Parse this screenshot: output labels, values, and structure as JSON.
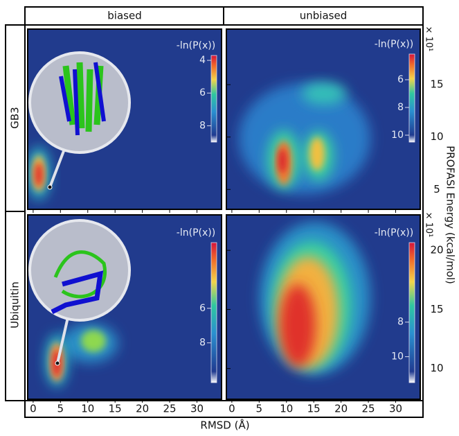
{
  "figure": {
    "columns": [
      "biased",
      "unbiased"
    ],
    "rows": [
      "GB3",
      "Ubiquitin"
    ],
    "xlabel": "RMSD (Å)",
    "ylabel": "PROFASI Energy (kcal/mol)"
  },
  "chart_data": [
    {
      "type": "heatmap",
      "xlim": [
        -1,
        34.5
      ],
      "xticks": [
        0,
        5,
        10,
        15,
        20,
        25,
        30
      ],
      "colorbar": {
        "label": "-ln(P(x))",
        "clim": [
          3.7,
          9
        ],
        "ticks": [
          4,
          6,
          8
        ]
      }
    },
    {
      "type": "heatmap",
      "xlim": [
        -1,
        34.5
      ],
      "xticks": [
        0,
        5,
        10,
        15,
        20,
        25,
        30
      ],
      "ylim": [
        3.1,
        20.3
      ],
      "yticks": [
        5,
        10,
        15
      ],
      "y_multiplier": "× 10¹",
      "colorbar": {
        "label": "-ln(P(x))",
        "clim": [
          4.15,
          10.5
        ],
        "ticks": [
          6,
          8,
          10
        ]
      }
    },
    {
      "type": "heatmap",
      "xlim": [
        -1,
        34.5
      ],
      "xticks": [
        0,
        5,
        10,
        15,
        20,
        25,
        30
      ],
      "colorbar": {
        "label": "-ln(P(x))",
        "clim": [
          2.2,
          10.3
        ],
        "ticks": [
          6,
          8
        ]
      }
    },
    {
      "type": "heatmap",
      "xlim": [
        -1,
        34.5
      ],
      "xticks": [
        0,
        5,
        10,
        15,
        20,
        25,
        30
      ],
      "ylim": [
        7.4,
        23
      ],
      "yticks": [
        10,
        15,
        20
      ],
      "y_multiplier": "× 10¹",
      "colorbar": {
        "label": "-ln(P(x))",
        "clim": [
          3.4,
          11.5
        ],
        "ticks": [
          8,
          10
        ]
      }
    }
  ]
}
